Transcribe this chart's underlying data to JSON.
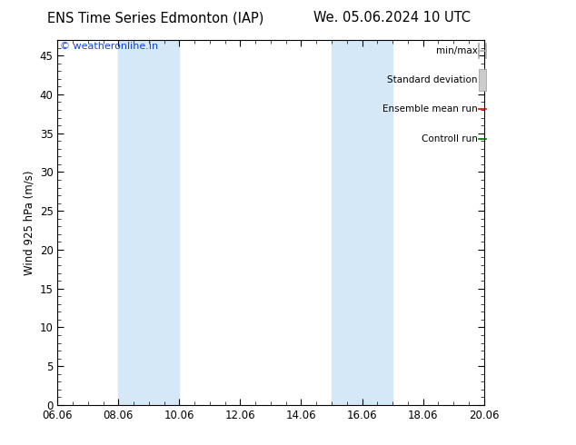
{
  "title_left": "ENS Time Series Edmonton (IAP)",
  "title_right": "We. 05.06.2024 10 UTC",
  "ylabel": "Wind 925 hPa (m/s)",
  "watermark": "© weatheronline.in",
  "xlim": [
    0,
    14
  ],
  "ylim": [
    0,
    47
  ],
  "yticks": [
    0,
    5,
    10,
    15,
    20,
    25,
    30,
    35,
    40,
    45
  ],
  "xtick_labels": [
    "06.06",
    "08.06",
    "10.06",
    "12.06",
    "14.06",
    "16.06",
    "18.06",
    "20.06"
  ],
  "xtick_positions": [
    0,
    2,
    4,
    6,
    8,
    10,
    12,
    14
  ],
  "shade_bands": [
    {
      "x_start": 2,
      "x_end": 4,
      "color": "#d4e8f7"
    },
    {
      "x_start": 9,
      "x_end": 11,
      "color": "#d4e8f7"
    }
  ],
  "legend_items": [
    {
      "label": "min/max",
      "color": "#aaaaaa",
      "lw": 1.2,
      "style": "minmax"
    },
    {
      "label": "Standard deviation",
      "color": "#cccccc",
      "lw": 5,
      "style": "bar"
    },
    {
      "label": "Ensemble mean run",
      "color": "#dd0000",
      "lw": 1.2,
      "style": "line"
    },
    {
      "label": "Controll run",
      "color": "#006600",
      "lw": 1.2,
      "style": "line"
    }
  ],
  "background_color": "#ffffff",
  "plot_bg_color": "#ffffff",
  "title_fontsize": 10.5,
  "axis_fontsize": 8.5,
  "watermark_color": "#1144cc",
  "watermark_fontsize": 8,
  "legend_fontsize": 7.5
}
